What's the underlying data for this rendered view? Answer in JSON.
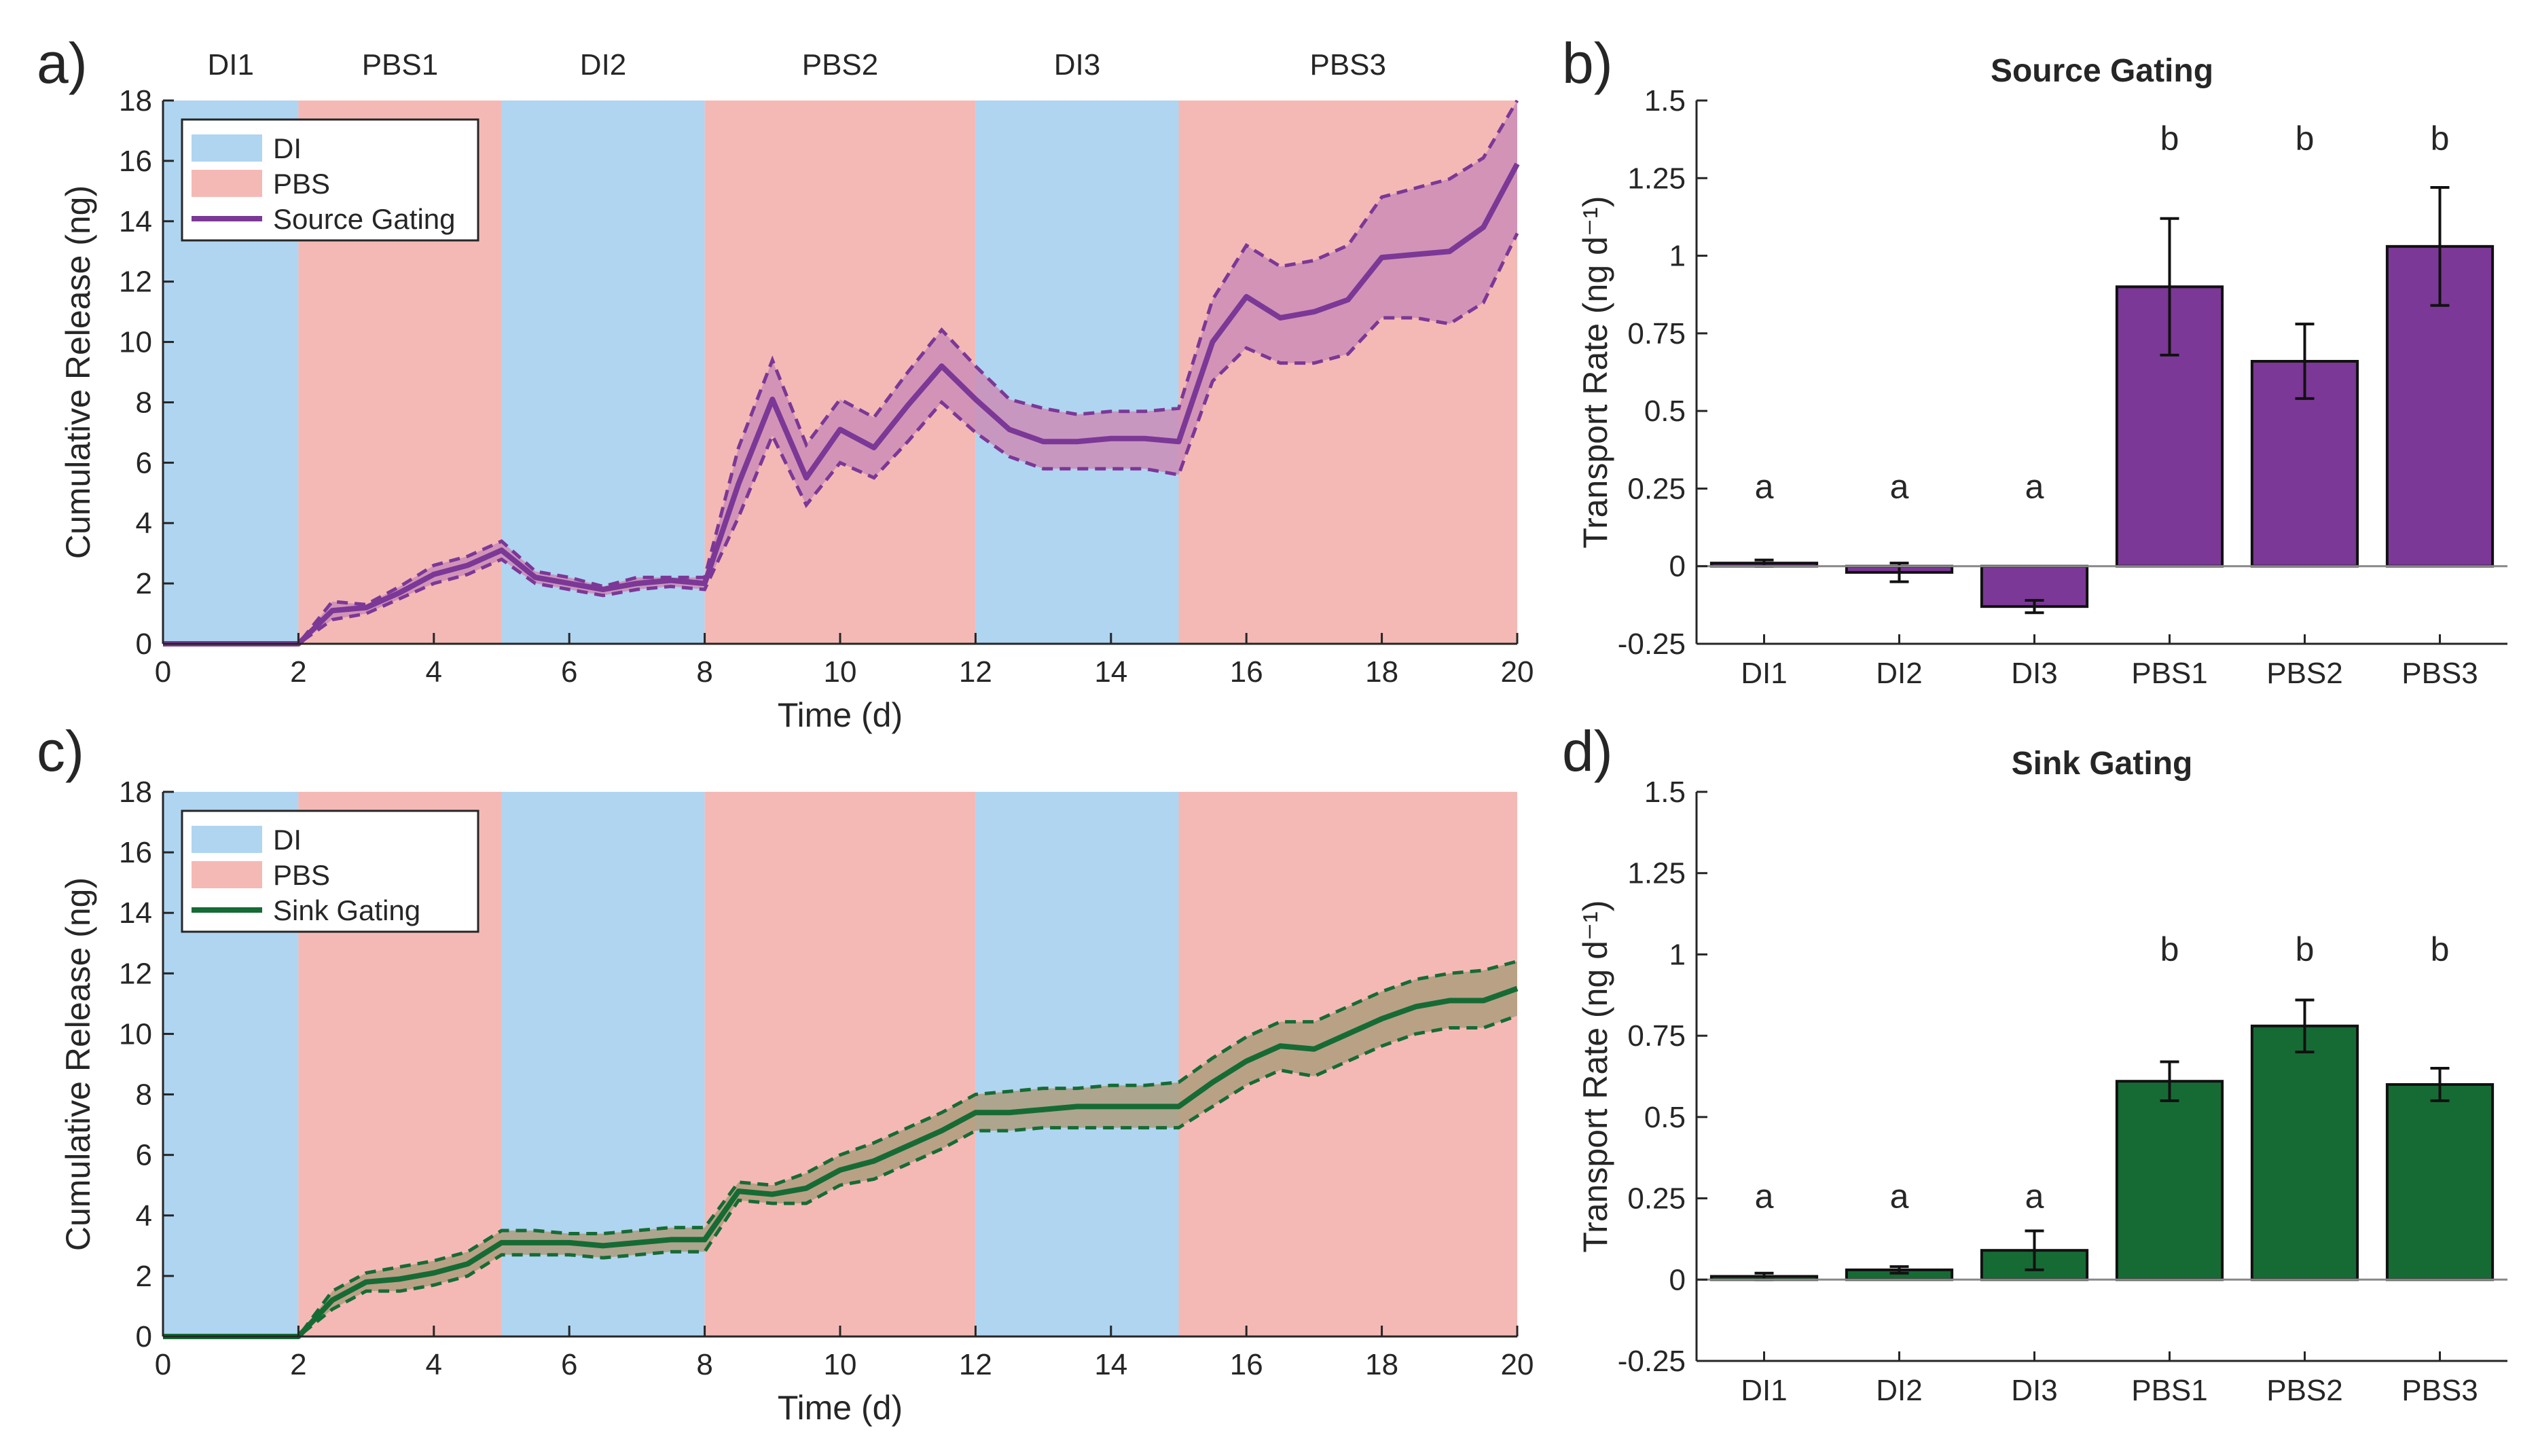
{
  "colors": {
    "di_band": "#afd5f1",
    "pbs_band": "#f5b9b5",
    "source": "#7b3896",
    "source_fill": "#cc8cb7",
    "sink": "#166b35",
    "sink_fill": "#ae9c7d",
    "axis": "#262626"
  },
  "chart_data": [
    {
      "panel_label": "a)",
      "type": "line",
      "xlabel": "Time (d)",
      "ylabel": "Cumulative Release (ng)",
      "xlim": [
        0,
        20
      ],
      "ylim": [
        0,
        18
      ],
      "xticks": [
        "0",
        "2",
        "4",
        "6",
        "8",
        "10",
        "12",
        "14",
        "16",
        "18",
        "20"
      ],
      "yticks": [
        "0",
        "2",
        "4",
        "6",
        "8",
        "10",
        "12",
        "14",
        "16",
        "18"
      ],
      "phases": [
        {
          "label": "DI1",
          "type": "DI",
          "start": 0,
          "end": 2
        },
        {
          "label": "PBS1",
          "type": "PBS",
          "start": 2,
          "end": 5
        },
        {
          "label": "DI2",
          "type": "DI",
          "start": 5,
          "end": 8
        },
        {
          "label": "PBS2",
          "type": "PBS",
          "start": 8,
          "end": 12
        },
        {
          "label": "DI3",
          "type": "DI",
          "start": 12,
          "end": 15
        },
        {
          "label": "PBS3",
          "type": "PBS",
          "start": 15,
          "end": 20
        }
      ],
      "legend": [
        "DI",
        "PBS",
        "Source Gating"
      ],
      "series": {
        "name": "Source Gating",
        "x": [
          0,
          2,
          2.5,
          3,
          3.5,
          4,
          4.5,
          5,
          5.5,
          6,
          6.5,
          7,
          7.5,
          8,
          8.5,
          9,
          9.5,
          10,
          10.5,
          11,
          11.5,
          12,
          12.5,
          13,
          13.5,
          14,
          14.5,
          15,
          15.5,
          16,
          16.5,
          17,
          17.5,
          18,
          18.5,
          19,
          19.5,
          20
        ],
        "mean": [
          0,
          0,
          1.1,
          1.2,
          1.7,
          2.3,
          2.6,
          3.1,
          2.2,
          2.0,
          1.8,
          2.0,
          2.1,
          2.0,
          5.3,
          8.1,
          5.5,
          7.1,
          6.5,
          7.9,
          9.2,
          8.1,
          7.1,
          6.7,
          6.7,
          6.8,
          6.8,
          6.7,
          10.0,
          11.5,
          10.8,
          11.0,
          11.4,
          12.8,
          12.9,
          13.0,
          13.8,
          15.9
        ],
        "upper": [
          0,
          0,
          1.4,
          1.3,
          1.9,
          2.6,
          2.9,
          3.4,
          2.4,
          2.2,
          1.9,
          2.2,
          2.2,
          2.2,
          6.5,
          9.4,
          6.6,
          8.1,
          7.5,
          9.0,
          10.4,
          9.2,
          8.1,
          7.8,
          7.6,
          7.7,
          7.7,
          7.8,
          11.4,
          13.2,
          12.5,
          12.7,
          13.2,
          14.8,
          15.1,
          15.4,
          16.1,
          18.0
        ],
        "lower": [
          0,
          0,
          0.8,
          1.0,
          1.5,
          2.0,
          2.3,
          2.8,
          2.0,
          1.8,
          1.6,
          1.8,
          1.9,
          1.8,
          4.2,
          6.9,
          4.6,
          6.0,
          5.5,
          6.7,
          8.0,
          7.0,
          6.2,
          5.8,
          5.8,
          5.8,
          5.8,
          5.6,
          8.7,
          9.8,
          9.3,
          9.3,
          9.6,
          10.8,
          10.8,
          10.6,
          11.3,
          13.6
        ]
      }
    },
    {
      "panel_label": "b)",
      "type": "bar",
      "title": "Source Gating",
      "ylabel": "Transport Rate (ng d⁻¹)",
      "ylim": [
        -0.25,
        1.5
      ],
      "yticks": [
        "-0.25",
        "0",
        "0.25",
        "0.5",
        "0.75",
        "1",
        "1.25",
        "1.5"
      ],
      "categories": [
        "DI1",
        "DI2",
        "DI3",
        "PBS1",
        "PBS2",
        "PBS3"
      ],
      "values": [
        0.01,
        -0.02,
        -0.13,
        0.9,
        0.66,
        1.03
      ],
      "errors": [
        0.01,
        0.03,
        0.02,
        0.22,
        0.12,
        0.19
      ],
      "significance": [
        "a",
        "a",
        "a",
        "b",
        "b",
        "b"
      ]
    },
    {
      "panel_label": "c)",
      "type": "line",
      "xlabel": "Time (d)",
      "ylabel": "Cumulative Release (ng)",
      "xlim": [
        0,
        20
      ],
      "ylim": [
        0,
        18
      ],
      "xticks": [
        "0",
        "2",
        "4",
        "6",
        "8",
        "10",
        "12",
        "14",
        "16",
        "18",
        "20"
      ],
      "yticks": [
        "0",
        "2",
        "4",
        "6",
        "8",
        "10",
        "12",
        "14",
        "16",
        "18"
      ],
      "phases": [
        {
          "label": "DI1",
          "type": "DI",
          "start": 0,
          "end": 2
        },
        {
          "label": "PBS1",
          "type": "PBS",
          "start": 2,
          "end": 5
        },
        {
          "label": "DI2",
          "type": "DI",
          "start": 5,
          "end": 8
        },
        {
          "label": "PBS2",
          "type": "PBS",
          "start": 8,
          "end": 12
        },
        {
          "label": "DI3",
          "type": "DI",
          "start": 12,
          "end": 15
        },
        {
          "label": "PBS3",
          "type": "PBS",
          "start": 15,
          "end": 20
        }
      ],
      "legend": [
        "DI",
        "PBS",
        "Sink Gating"
      ],
      "series": {
        "name": "Sink Gating",
        "x": [
          0,
          2,
          2.5,
          3,
          3.5,
          4,
          4.5,
          5,
          5.5,
          6,
          6.5,
          7,
          7.5,
          8,
          8.5,
          9,
          9.5,
          10,
          10.5,
          11,
          11.5,
          12,
          12.5,
          13,
          13.5,
          14,
          14.5,
          15,
          15.5,
          16,
          16.5,
          17,
          17.5,
          18,
          18.5,
          19,
          19.5,
          20
        ],
        "mean": [
          0,
          0,
          1.2,
          1.8,
          1.9,
          2.1,
          2.4,
          3.1,
          3.1,
          3.1,
          3.0,
          3.1,
          3.2,
          3.2,
          4.8,
          4.7,
          4.9,
          5.5,
          5.8,
          6.3,
          6.8,
          7.4,
          7.4,
          7.5,
          7.6,
          7.6,
          7.6,
          7.6,
          8.4,
          9.1,
          9.6,
          9.5,
          10.0,
          10.5,
          10.9,
          11.1,
          11.1,
          11.5
        ],
        "upper": [
          0,
          0,
          1.5,
          2.1,
          2.3,
          2.5,
          2.8,
          3.5,
          3.5,
          3.4,
          3.4,
          3.5,
          3.6,
          3.6,
          5.1,
          5.0,
          5.4,
          6.0,
          6.4,
          6.9,
          7.4,
          8.0,
          8.1,
          8.2,
          8.2,
          8.3,
          8.3,
          8.4,
          9.2,
          9.9,
          10.4,
          10.4,
          10.9,
          11.4,
          11.8,
          12.0,
          12.1,
          12.4
        ],
        "lower": [
          0,
          0,
          0.9,
          1.5,
          1.5,
          1.7,
          2.0,
          2.7,
          2.7,
          2.7,
          2.6,
          2.7,
          2.8,
          2.8,
          4.5,
          4.4,
          4.4,
          5.0,
          5.2,
          5.7,
          6.2,
          6.8,
          6.8,
          6.9,
          6.9,
          6.9,
          6.9,
          6.9,
          7.6,
          8.3,
          8.8,
          8.6,
          9.1,
          9.6,
          10.0,
          10.2,
          10.2,
          10.6
        ]
      }
    },
    {
      "panel_label": "d)",
      "type": "bar",
      "title": "Sink Gating",
      "ylabel": "Transport Rate (ng d⁻¹)",
      "ylim": [
        -0.25,
        1.5
      ],
      "yticks": [
        "-0.25",
        "0",
        "0.25",
        "0.5",
        "0.75",
        "1",
        "1.25",
        "1.5"
      ],
      "categories": [
        "DI1",
        "DI2",
        "DI3",
        "PBS1",
        "PBS2",
        "PBS3"
      ],
      "values": [
        0.01,
        0.03,
        0.09,
        0.61,
        0.78,
        0.6
      ],
      "errors": [
        0.01,
        0.01,
        0.06,
        0.06,
        0.08,
        0.05
      ],
      "significance": [
        "a",
        "a",
        "a",
        "b",
        "b",
        "b"
      ]
    }
  ]
}
